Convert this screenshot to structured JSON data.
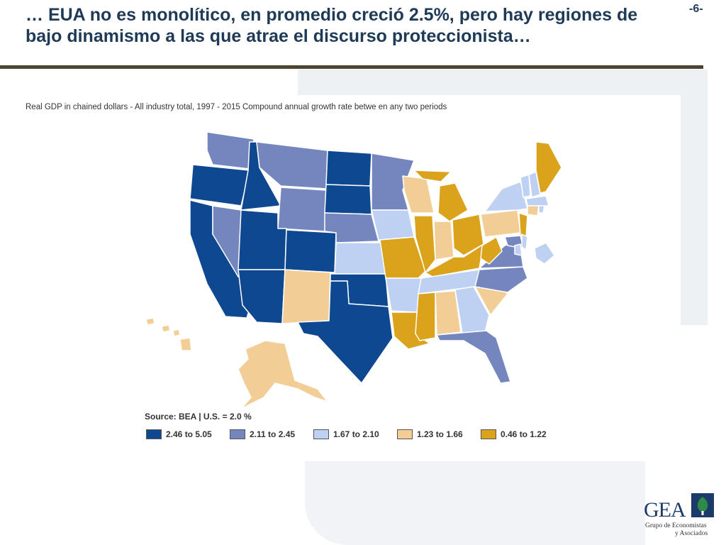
{
  "slide": {
    "title": "… EUA no es monolítico, en promedio creció 2.5%, pero hay regiones de bajo dinamismo a las que atrae el discurso proteccionista…",
    "page_number": "-6-"
  },
  "map": {
    "title": "Real GDP in chained dollars - All industry total, 1997 - 2015 Compound annual growth rate betwe en any two periods",
    "source": "Source: BEA | U.S. = 2.0 %",
    "legend": [
      {
        "label": "2.46 to 5.05",
        "color": "#0d4891"
      },
      {
        "label": "2.11 to 2.45",
        "color": "#7486bd"
      },
      {
        "label": "1.67 to 2.10",
        "color": "#bfd1f2"
      },
      {
        "label": "1.23 to 1.66",
        "color": "#f2cd95"
      },
      {
        "label": "0.46 to 1.22",
        "color": "#dba21c"
      }
    ]
  },
  "logo": {
    "name": "GEA",
    "line1": "Grupo de Economistas",
    "line2": "y Asociados"
  }
}
